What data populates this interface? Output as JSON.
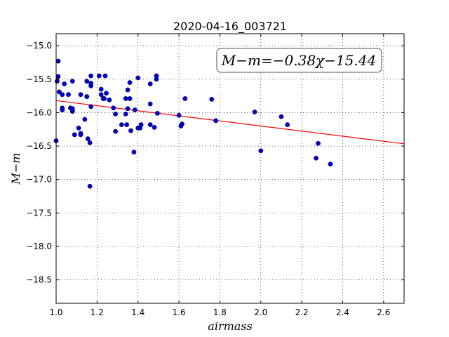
{
  "chart_data": {
    "type": "scatter",
    "title": "2020-04-16_003721",
    "xlabel": "airmass",
    "ylabel": "M−m",
    "xlim": [
      1.0,
      2.7
    ],
    "ylim": [
      -18.85,
      -14.82
    ],
    "y_inverted": true,
    "grid": true,
    "x_ticks": [
      1.0,
      1.2,
      1.4,
      1.6,
      1.8,
      2.0,
      2.2,
      2.4,
      2.6
    ],
    "x_tick_labels": [
      "1.0",
      "1.2",
      "1.4",
      "1.6",
      "1.8",
      "2.0",
      "2.2",
      "2.4",
      "2.6"
    ],
    "y_ticks": [
      -15.0,
      -15.5,
      -16.0,
      -16.5,
      -17.0,
      -17.5,
      -18.0,
      -18.5
    ],
    "y_tick_labels": [
      "−15.0",
      "−15.5",
      "−16.0",
      "−16.5",
      "−17.0",
      "−17.5",
      "−18.0",
      "−18.5"
    ],
    "annotation": "M−m=−0.38χ−15.44",
    "fit": {
      "slope": -0.38,
      "intercept": -15.44,
      "color": "#ff0000"
    },
    "point_color": "#0000cc",
    "points": [
      [
        1.0,
        -16.42
      ],
      [
        1.01,
        -15.23
      ],
      [
        1.005,
        -15.53
      ],
      [
        1.01,
        -15.46
      ],
      [
        1.015,
        -15.69
      ],
      [
        1.03,
        -15.73
      ],
      [
        1.03,
        -15.93
      ],
      [
        1.03,
        -15.96
      ],
      [
        1.04,
        -15.57
      ],
      [
        1.06,
        -15.73
      ],
      [
        1.07,
        -15.93
      ],
      [
        1.08,
        -15.98
      ],
      [
        1.08,
        -15.94
      ],
      [
        1.08,
        -15.53
      ],
      [
        1.09,
        -16.33
      ],
      [
        1.11,
        -16.23
      ],
      [
        1.12,
        -16.31
      ],
      [
        1.12,
        -16.33
      ],
      [
        1.12,
        -15.73
      ],
      [
        1.14,
        -16.1
      ],
      [
        1.15,
        -15.53
      ],
      [
        1.15,
        -15.76
      ],
      [
        1.155,
        -16.39
      ],
      [
        1.165,
        -16.45
      ],
      [
        1.165,
        -17.1
      ],
      [
        1.17,
        -15.91
      ],
      [
        1.17,
        -15.6
      ],
      [
        1.17,
        -15.56
      ],
      [
        1.17,
        -15.45
      ],
      [
        1.21,
        -15.45
      ],
      [
        1.22,
        -15.73
      ],
      [
        1.22,
        -15.65
      ],
      [
        1.23,
        -15.79
      ],
      [
        1.235,
        -15.79
      ],
      [
        1.24,
        -15.45
      ],
      [
        1.245,
        -15.71
      ],
      [
        1.26,
        -15.81
      ],
      [
        1.28,
        -15.93
      ],
      [
        1.29,
        -16.02
      ],
      [
        1.29,
        -16.28
      ],
      [
        1.32,
        -16.18
      ],
      [
        1.34,
        -15.79
      ],
      [
        1.34,
        -16.02
      ],
      [
        1.345,
        -16.18
      ],
      [
        1.35,
        -15.66
      ],
      [
        1.35,
        -15.94
      ],
      [
        1.36,
        -15.79
      ],
      [
        1.36,
        -15.55
      ],
      [
        1.365,
        -16.27
      ],
      [
        1.38,
        -16.59
      ],
      [
        1.385,
        -15.96
      ],
      [
        1.4,
        -15.48
      ],
      [
        1.4,
        -16.23
      ],
      [
        1.41,
        -16.23
      ],
      [
        1.415,
        -16.18
      ],
      [
        1.46,
        -16.18
      ],
      [
        1.46,
        -15.87
      ],
      [
        1.46,
        -15.57
      ],
      [
        1.48,
        -16.22
      ],
      [
        1.49,
        -15.45
      ],
      [
        1.49,
        -15.5
      ],
      [
        1.495,
        -16.01
      ],
      [
        1.6,
        -16.04
      ],
      [
        1.61,
        -16.2
      ],
      [
        1.615,
        -16.17
      ],
      [
        1.63,
        -15.79
      ],
      [
        1.76,
        -15.8
      ],
      [
        1.78,
        -16.12
      ],
      [
        1.97,
        -15.99
      ],
      [
        2.0,
        -16.57
      ],
      [
        2.1,
        -16.06
      ],
      [
        2.13,
        -16.18
      ],
      [
        2.27,
        -16.68
      ],
      [
        2.28,
        -16.46
      ],
      [
        2.34,
        -16.77
      ]
    ]
  }
}
